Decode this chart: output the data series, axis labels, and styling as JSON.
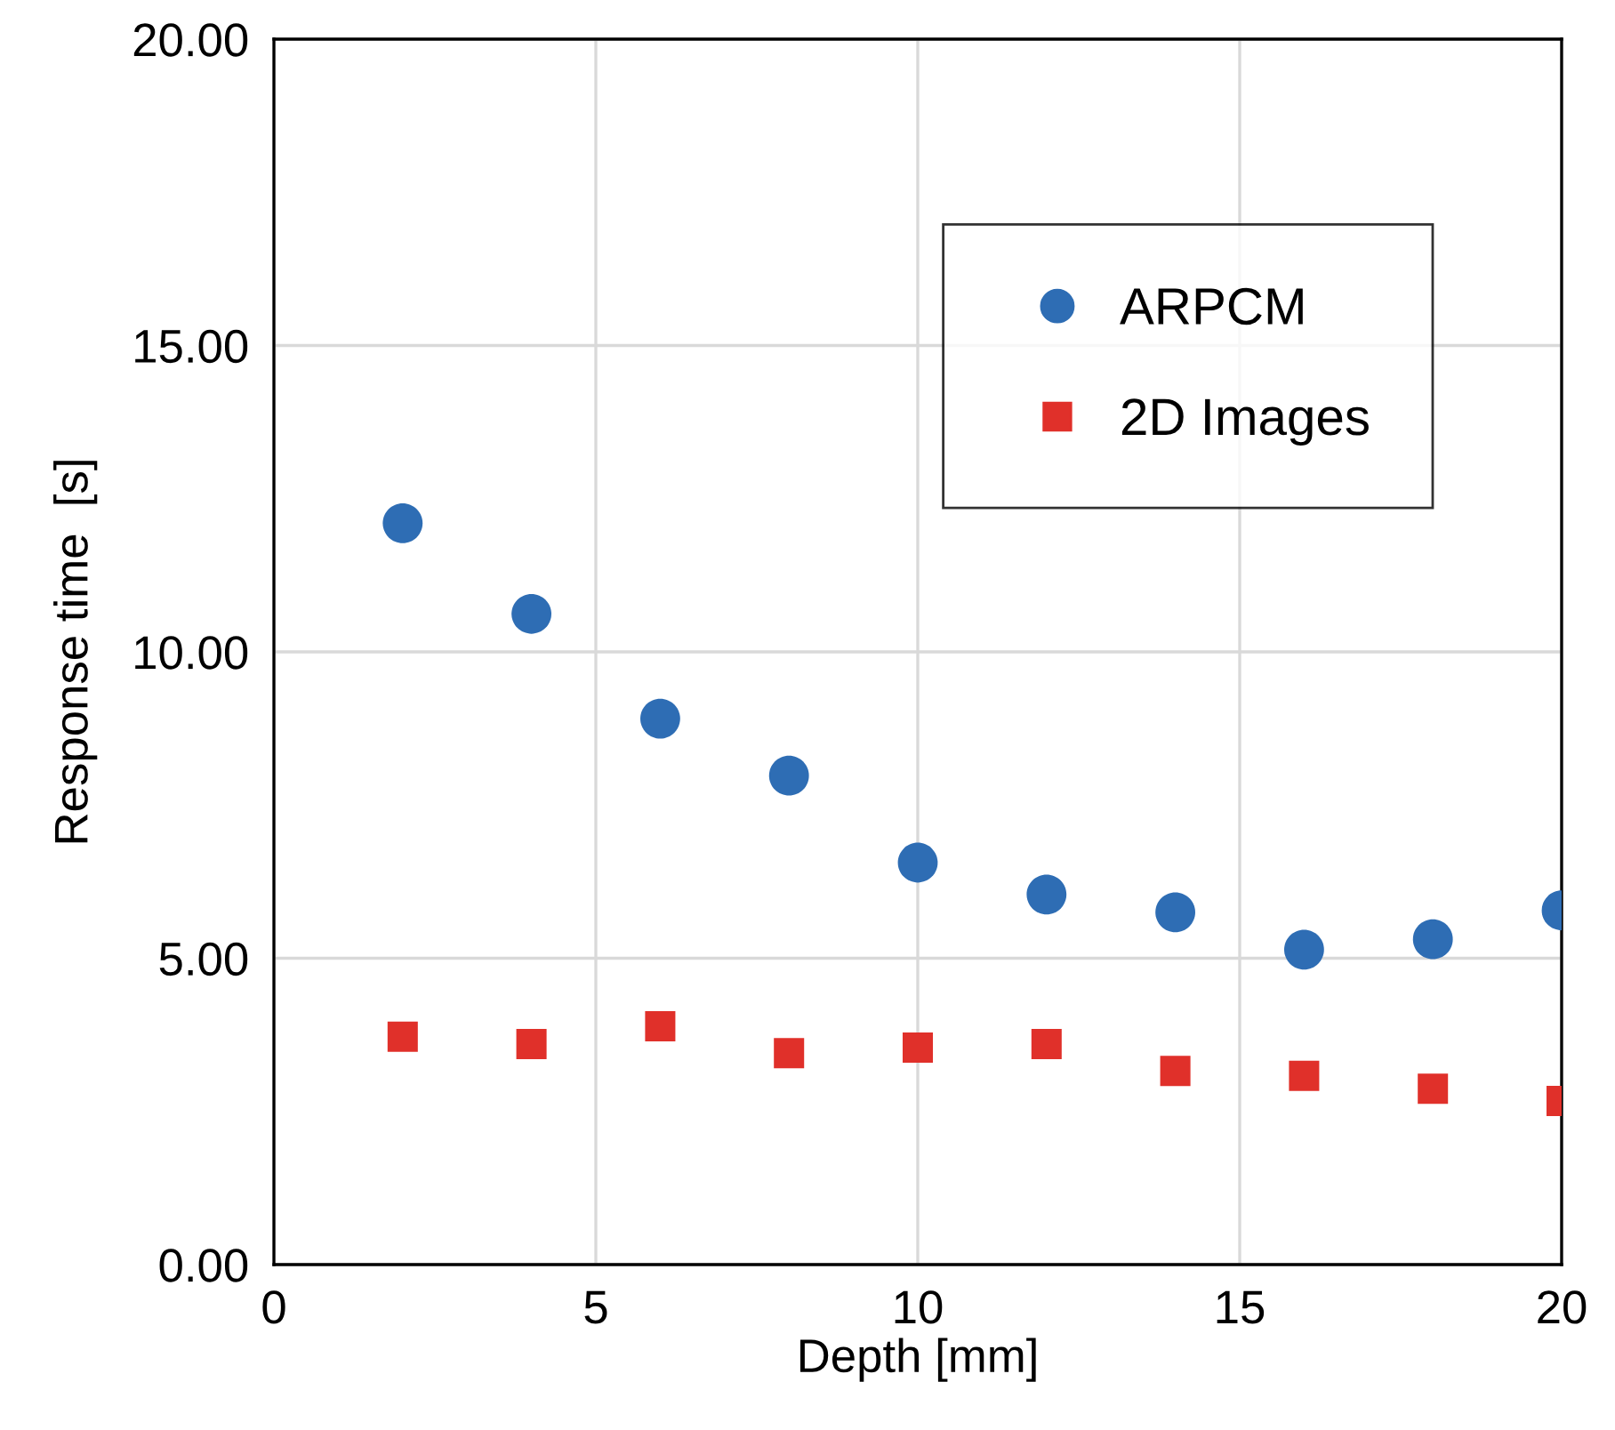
{
  "chart_data": {
    "type": "scatter",
    "xlabel": "Depth [mm]",
    "ylabel": "Response time  [s]",
    "x": [
      2,
      4,
      6,
      8,
      10,
      12,
      14,
      16,
      18,
      20
    ],
    "series": [
      {
        "name": "ARPCM",
        "color": "#2e6db4",
        "marker": "circle",
        "values": [
          12.1,
          10.62,
          8.91,
          7.98,
          6.56,
          6.04,
          5.75,
          5.14,
          5.31,
          5.78
        ]
      },
      {
        "name": "2D Images",
        "color": "#e0302a",
        "marker": "square",
        "values": [
          3.72,
          3.6,
          3.89,
          3.45,
          3.54,
          3.6,
          3.16,
          3.08,
          2.87,
          2.67
        ]
      }
    ],
    "xlim": [
      0,
      20
    ],
    "xticks": [
      0,
      5,
      10,
      15,
      20
    ],
    "ylim": [
      0,
      20
    ],
    "yticks": [
      {
        "value": 0,
        "label": "0.00"
      },
      {
        "value": 5,
        "label": "5.00"
      },
      {
        "value": 10,
        "label": "10.00"
      },
      {
        "value": 15,
        "label": "15.00"
      },
      {
        "value": 20,
        "label": "20.00"
      }
    ],
    "grid": true,
    "legend": "top right"
  }
}
